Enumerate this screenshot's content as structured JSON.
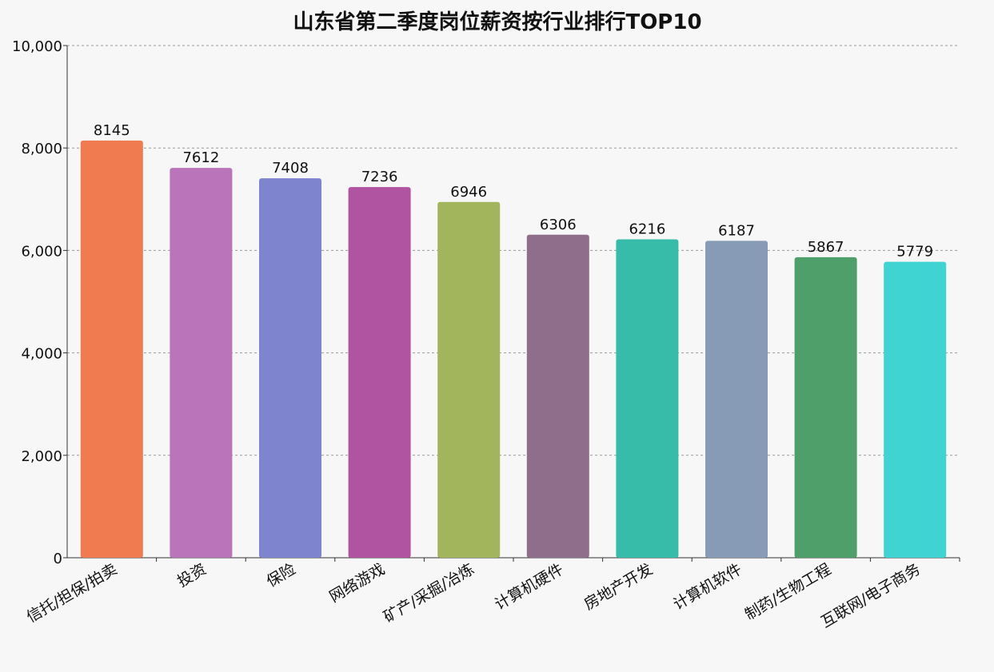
{
  "chart_data": {
    "type": "bar",
    "title": "山东省第二季度岗位薪资按行业排行TOP10",
    "xlabel": "",
    "ylabel": "",
    "categories": [
      "信托/担保/拍卖",
      "投资",
      "保险",
      "网络游戏",
      "矿产/采掘/冶炼",
      "计算机硬件",
      "房地产开发",
      "计算机软件",
      "制药/生物工程",
      "互联网/电子商务"
    ],
    "values": [
      8145,
      7612,
      7408,
      7236,
      6946,
      6306,
      6216,
      6187,
      5867,
      5779
    ],
    "colors": [
      "#f07b50",
      "#b974ba",
      "#7f84cf",
      "#b053a0",
      "#a3b55c",
      "#8e6e8a",
      "#38bcaa",
      "#879bb6",
      "#4f9f6b",
      "#3fd3d2"
    ],
    "ylim": [
      0,
      10000
    ],
    "yticks": [
      0,
      2000,
      4000,
      6000,
      8000,
      10000
    ],
    "ytick_labels": [
      "0",
      "2,000",
      "4,000",
      "6,000",
      "8,000",
      "10,000"
    ],
    "grid": true,
    "legend": "none"
  }
}
